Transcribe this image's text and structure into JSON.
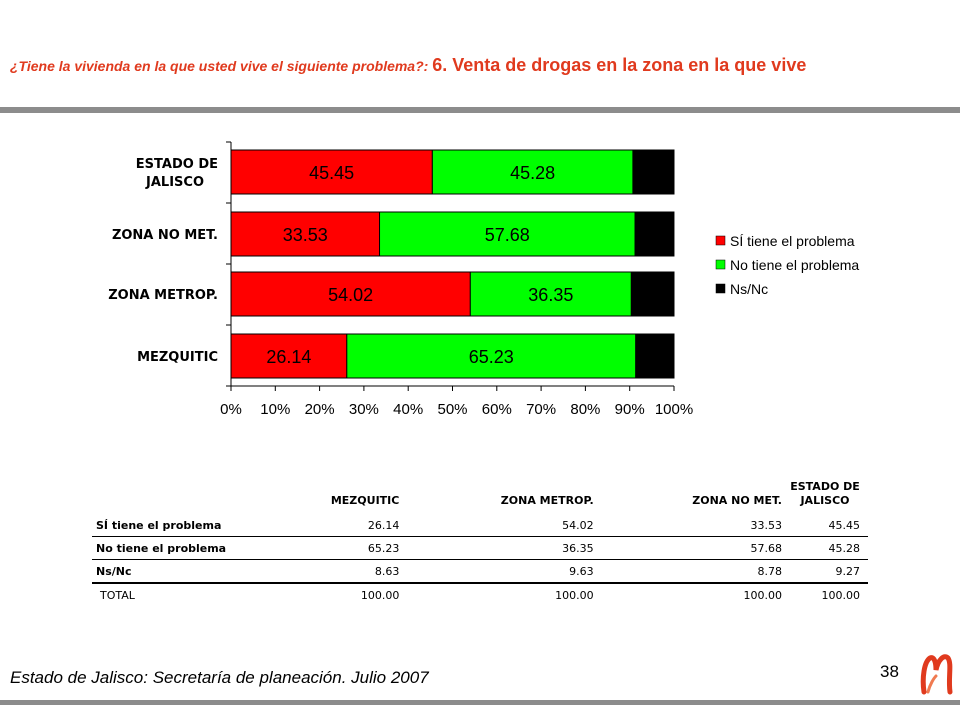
{
  "title": {
    "question": "¿Tiene la vivienda en la que usted vive el siguiente problema?: ",
    "topic": "6. Venta de drogas en la zona en la que vive"
  },
  "chart_data": {
    "type": "bar",
    "orientation": "horizontal",
    "stacked": "percent",
    "categories": [
      "ESTADO DE JALISCO",
      "ZONA NO MET.",
      "ZONA METROP.",
      "MEZQUITIC"
    ],
    "series": [
      {
        "name": "SÍ tiene el problema",
        "values": [
          45.45,
          33.53,
          54.02,
          26.14
        ],
        "color": "#ff0000"
      },
      {
        "name": "No tiene el problema",
        "values": [
          45.28,
          57.68,
          36.35,
          65.23
        ],
        "color": "#00ff00"
      },
      {
        "name": "Ns/Nc",
        "values": [
          9.27,
          8.78,
          9.63,
          8.63
        ],
        "color": "#000000"
      }
    ],
    "data_labels": [
      [
        "45.45",
        "33.53",
        "54.02",
        "26.14"
      ],
      [
        "45.28",
        "57.68",
        "36.35",
        "65.23"
      ]
    ],
    "x_ticks": [
      "0%",
      "10%",
      "20%",
      "30%",
      "40%",
      "50%",
      "60%",
      "70%",
      "80%",
      "90%",
      "100%"
    ],
    "xlim": [
      0,
      100
    ],
    "legend_position": "right",
    "grid": false
  },
  "table": {
    "columns": [
      "",
      "MEZQUITIC",
      "ZONA METROP.",
      "ZONA NO MET.",
      "ESTADO DE JALISCO"
    ],
    "rows": [
      {
        "label": "SÍ tiene el problema",
        "values": [
          "26.14",
          "54.02",
          "33.53",
          "45.45"
        ]
      },
      {
        "label": "No tiene el problema",
        "values": [
          "65.23",
          "36.35",
          "57.68",
          "45.28"
        ]
      },
      {
        "label": "Ns/Nc",
        "values": [
          "8.63",
          "9.63",
          "8.78",
          "9.27"
        ]
      },
      {
        "label": "TOTAL",
        "values": [
          "100.00",
          "100.00",
          "100.00",
          "100.00"
        ]
      }
    ]
  },
  "footer": {
    "source": "Estado de Jalisco: Secretaría de planeación. Julio 2007",
    "page_number": "38"
  },
  "colors": {
    "title": "#e03a1e",
    "rule": "#8c8c8c",
    "logo": "#e03a1e"
  },
  "logo_icon": "stylized-m-logo-icon"
}
